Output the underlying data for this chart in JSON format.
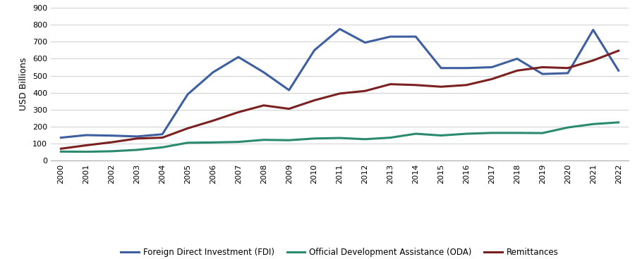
{
  "years": [
    2000,
    2001,
    2002,
    2003,
    2004,
    2005,
    2006,
    2007,
    2008,
    2009,
    2010,
    2011,
    2012,
    2013,
    2014,
    2015,
    2016,
    2017,
    2018,
    2019,
    2020,
    2021,
    2022
  ],
  "fdi": [
    135,
    150,
    147,
    142,
    155,
    390,
    520,
    610,
    520,
    415,
    650,
    775,
    695,
    730,
    730,
    545,
    545,
    550,
    600,
    510,
    515,
    770,
    530
  ],
  "oda": [
    53,
    52,
    55,
    63,
    78,
    105,
    107,
    110,
    122,
    120,
    130,
    133,
    126,
    135,
    158,
    148,
    158,
    163,
    163,
    162,
    195,
    215,
    225
  ],
  "remittances": [
    70,
    90,
    108,
    130,
    135,
    190,
    235,
    285,
    325,
    305,
    355,
    395,
    410,
    450,
    445,
    435,
    445,
    480,
    530,
    550,
    545,
    590,
    647
  ],
  "fdi_color": "#3D5FA0",
  "oda_color": "#2A8A6E",
  "remittances_color": "#7B2020",
  "ylabel": "USD Billions",
  "ylim": [
    0,
    900
  ],
  "yticks": [
    0,
    100,
    200,
    300,
    400,
    500,
    600,
    700,
    800,
    900
  ],
  "legend_labels": [
    "Foreign Direct Investment (FDI)",
    "Official Development Assistance (ODA)",
    "Remittances"
  ],
  "line_width": 2.2,
  "bg_color": "#ffffff",
  "grid_color": "#d0d0d0"
}
